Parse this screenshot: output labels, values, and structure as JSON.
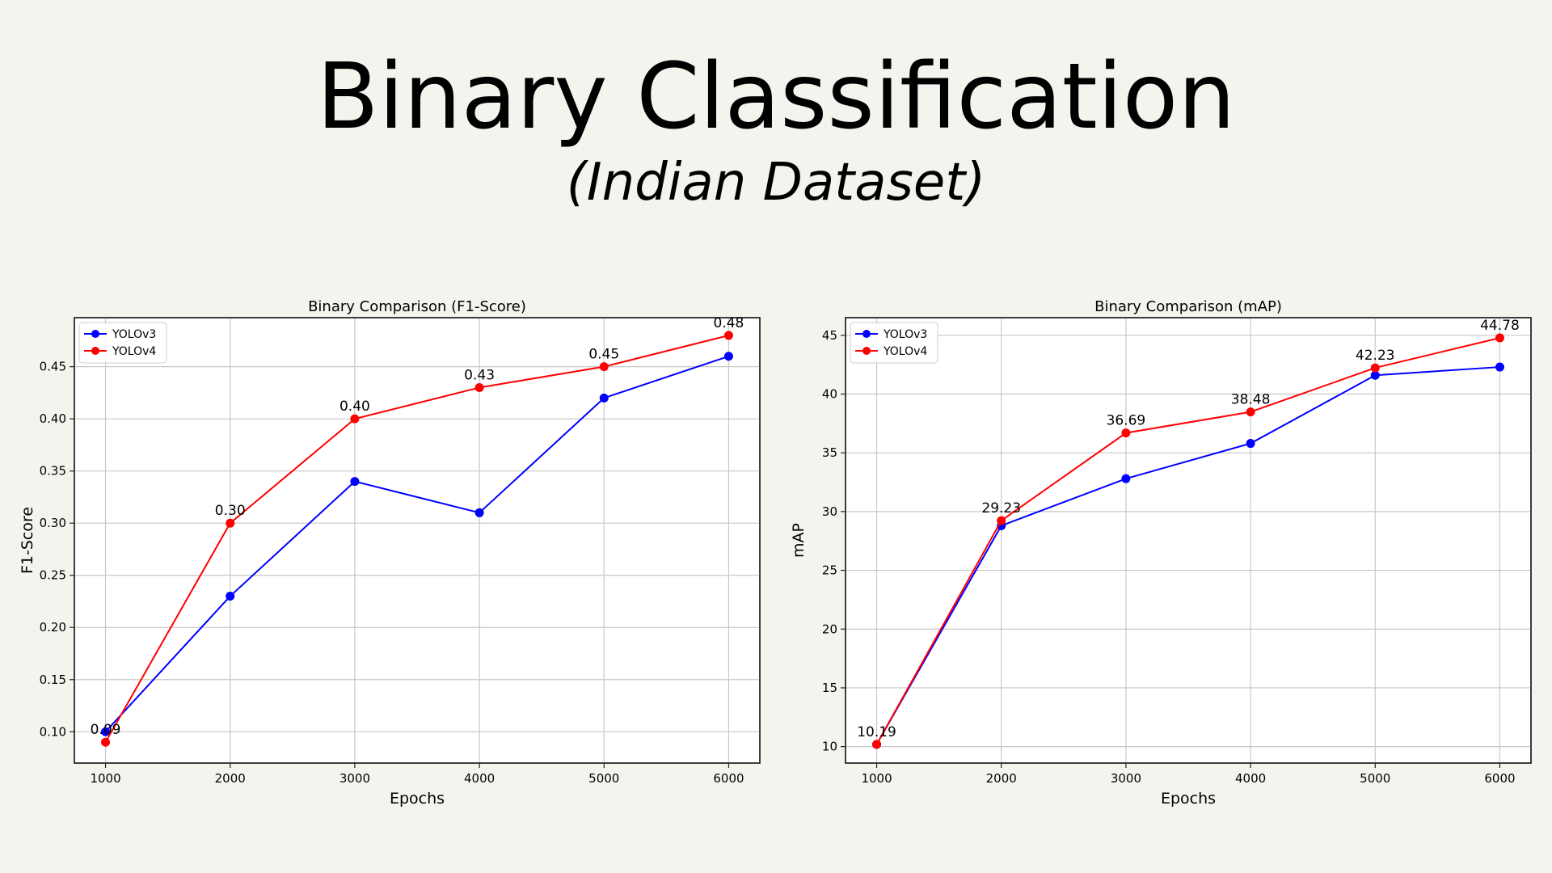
{
  "page": {
    "title": "Binary Classification",
    "subtitle": "(Indian Dataset)"
  },
  "chart_data": [
    {
      "type": "line",
      "title": "Binary Comparison (F1-Score)",
      "xlabel": "Epochs",
      "ylabel": "F1-Score",
      "x": [
        1000,
        2000,
        3000,
        4000,
        5000,
        6000
      ],
      "xlim": [
        750,
        6250
      ],
      "ylim": [
        0.07,
        0.497
      ],
      "yticks": [
        0.1,
        0.15,
        0.2,
        0.25,
        0.3,
        0.35,
        0.4,
        0.45
      ],
      "ytick_labels": [
        "0.10",
        "0.15",
        "0.20",
        "0.25",
        "0.30",
        "0.35",
        "0.40",
        "0.45"
      ],
      "grid": true,
      "legend_position": "top-left",
      "series": [
        {
          "name": "YOLOv3",
          "color": "#0000ff",
          "values": [
            0.1,
            0.23,
            0.34,
            0.31,
            0.42,
            0.46
          ]
        },
        {
          "name": "YOLOv4",
          "color": "#ff0000",
          "values": [
            0.09,
            0.3,
            0.4,
            0.43,
            0.45,
            0.48
          ],
          "data_labels": [
            "0.09",
            "0.30",
            "0.40",
            "0.43",
            "0.45",
            "0.48"
          ]
        }
      ]
    },
    {
      "type": "line",
      "title": "Binary Comparison (mAP)",
      "xlabel": "Epochs",
      "ylabel": "mAP",
      "x": [
        1000,
        2000,
        3000,
        4000,
        5000,
        6000
      ],
      "xlim": [
        750,
        6250
      ],
      "ylim": [
        8.6,
        46.5
      ],
      "yticks": [
        10,
        15,
        20,
        25,
        30,
        35,
        40,
        45
      ],
      "ytick_labels": [
        "10",
        "15",
        "20",
        "25",
        "30",
        "35",
        "40",
        "45"
      ],
      "grid": true,
      "legend_position": "top-left",
      "series": [
        {
          "name": "YOLOv3",
          "color": "#0000ff",
          "values": [
            10.19,
            28.8,
            32.8,
            35.8,
            41.6,
            42.3
          ]
        },
        {
          "name": "YOLOv4",
          "color": "#ff0000",
          "values": [
            10.19,
            29.23,
            36.69,
            38.48,
            42.23,
            44.78
          ],
          "data_labels": [
            "10.19",
            "29.23",
            "36.69",
            "38.48",
            "42.23",
            "44.78"
          ]
        }
      ]
    }
  ]
}
